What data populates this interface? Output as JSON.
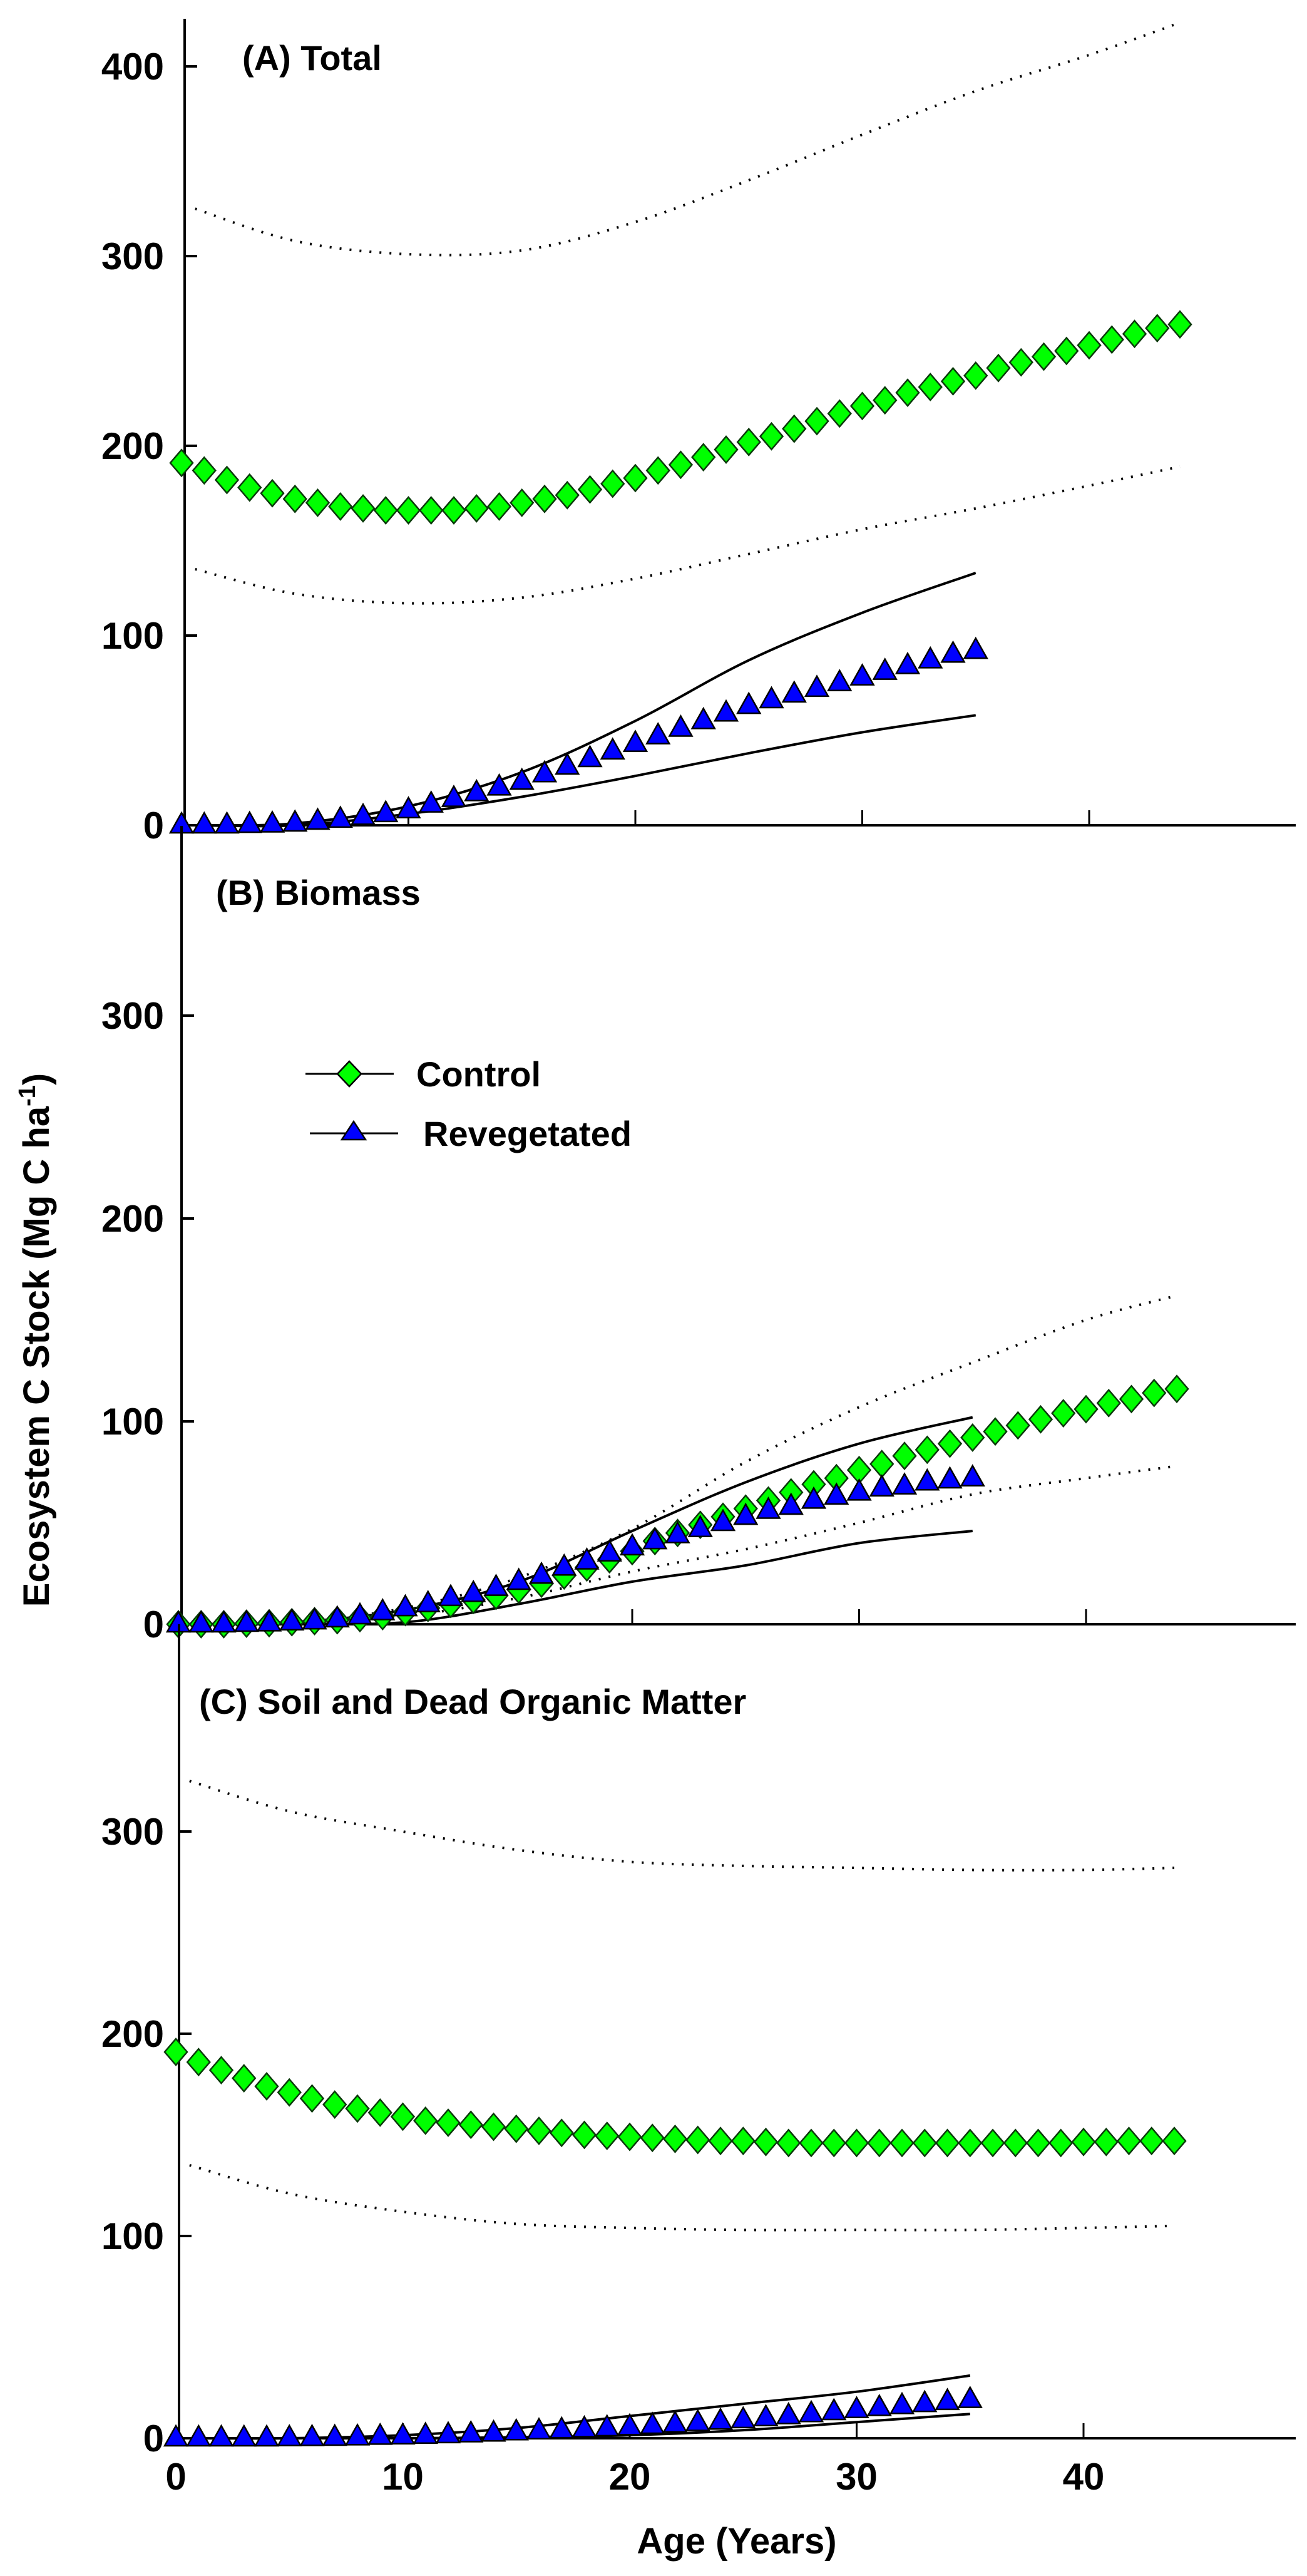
{
  "chart_data": {
    "type": "line",
    "xlabel": "Age (Years)",
    "ylabel_main": "Ecosystem C Stock (Mg C ha",
    "ylabel_sup": "-1",
    "ylabel_end": ")",
    "xlim": [
      0,
      49
    ],
    "xticks": [
      0,
      10,
      20,
      30,
      40
    ],
    "legend": {
      "placement": "panel B upper-left",
      "entries": [
        {
          "name": "Control",
          "marker": "diamond",
          "color": "#00FF00"
        },
        {
          "name": "Revegetated",
          "marker": "triangle",
          "color": "#0000FF"
        }
      ]
    },
    "bound_x_control": [
      0,
      5,
      10,
      15,
      20,
      25,
      30,
      35,
      40,
      44
    ],
    "bound_x_revegetated": [
      0,
      5,
      10,
      15,
      20,
      25,
      30,
      35
    ],
    "panels": [
      {
        "title": "(A) Total",
        "ylim": [
          0,
          425
        ],
        "yticks": [
          0,
          100,
          200,
          300,
          400
        ],
        "control": [
          191,
          187,
          182,
          178,
          175,
          172,
          170,
          168,
          167,
          166,
          166,
          166,
          166,
          167,
          168,
          170,
          172,
          174,
          177,
          180,
          183,
          187,
          190,
          194,
          198,
          202,
          205,
          209,
          213,
          217,
          221,
          224,
          228,
          231,
          234,
          237,
          241,
          244,
          247,
          250,
          253,
          256,
          259,
          262,
          264
        ],
        "revegetated": [
          0,
          0,
          0,
          0.3,
          0.5,
          1,
          2,
          3,
          4.5,
          6,
          8,
          11,
          14,
          17,
          20,
          23,
          27,
          31,
          35,
          39,
          43,
          47,
          51,
          55,
          59,
          63,
          66,
          69,
          72,
          75,
          78,
          81,
          84,
          87,
          90,
          92
        ],
        "control_upper": [
          325,
          308,
          301,
          303,
          318,
          340,
          364,
          387,
          406,
          423
        ],
        "control_lower": [
          135,
          122,
          117,
          120,
          130,
          143,
          156,
          167,
          179,
          189
        ],
        "revegetated_upper": [
          0,
          1,
          10,
          28,
          55,
          87,
          112,
          133
        ],
        "revegetated_lower": [
          0,
          0,
          6,
          15,
          26,
          38,
          49,
          58
        ]
      },
      {
        "title": "(B) Biomass",
        "ylim": [
          0,
          395
        ],
        "yticks": [
          0,
          100,
          200,
          300
        ],
        "control": [
          0,
          0,
          0,
          0.3,
          0.5,
          1,
          1.5,
          2,
          3,
          4,
          6,
          8,
          10,
          12,
          14,
          17,
          20,
          24,
          28,
          32,
          36,
          41,
          45,
          49,
          53,
          57,
          61,
          65,
          69,
          72,
          76,
          79,
          83,
          86,
          89,
          92,
          95,
          98,
          101,
          104,
          106,
          109,
          111,
          114,
          116
        ],
        "revegetated": [
          0,
          0,
          0,
          0.3,
          0.5,
          1,
          1.5,
          2.5,
          4,
          6,
          8,
          10,
          13,
          15,
          18,
          21,
          24,
          28,
          31,
          35,
          38,
          41,
          44,
          47,
          50,
          53,
          56,
          58,
          61,
          63,
          65,
          67,
          68,
          70,
          71,
          72
        ],
        "control_upper": [
          0,
          1,
          8,
          23,
          47,
          80,
          107,
          129,
          150,
          162
        ],
        "control_lower": [
          0,
          0.5,
          4,
          13,
          26,
          37,
          50,
          64,
          72,
          78
        ],
        "revegetated_upper": [
          0,
          1,
          7,
          21,
          46,
          70,
          89,
          102
        ],
        "revegetated_lower": [
          0,
          0.3,
          1,
          10,
          21,
          29,
          40,
          46
        ]
      },
      {
        "title": "(C) Soil and Dead Organic Matter",
        "ylim": [
          0,
          400
        ],
        "yticks": [
          0,
          100,
          200,
          300
        ],
        "control": [
          191,
          186,
          182,
          178,
          174,
          171,
          168,
          165,
          163,
          161,
          159,
          157,
          156,
          155,
          154,
          153,
          152,
          151,
          150,
          149.5,
          149,
          148.5,
          148,
          147.5,
          147,
          147,
          146.5,
          146,
          146,
          146,
          146,
          146,
          146,
          146,
          146,
          146,
          146,
          146,
          146,
          146,
          146.5,
          146.5,
          147,
          147,
          147
        ],
        "revegetated": [
          0,
          0,
          0,
          0,
          0,
          0.1,
          0.2,
          0.3,
          0.5,
          0.8,
          1,
          1.3,
          1.6,
          2,
          2.4,
          3,
          3.5,
          4,
          4.5,
          5,
          5.5,
          6.2,
          6.9,
          7.6,
          8.3,
          9,
          10,
          11,
          12,
          13,
          14,
          15,
          16,
          17,
          18,
          19
        ],
        "control_upper": [
          325,
          310,
          300,
          291,
          285,
          283,
          282,
          281,
          281,
          282
        ],
        "control_lower": [
          135,
          121,
          112,
          106,
          104,
          103,
          103,
          103,
          104,
          105
        ],
        "revegetated_upper": [
          0,
          0,
          1.5,
          5,
          11,
          17,
          23,
          31
        ],
        "revegetated_lower": [
          0,
          0,
          0,
          0.5,
          1.5,
          4,
          8,
          12
        ]
      }
    ]
  }
}
